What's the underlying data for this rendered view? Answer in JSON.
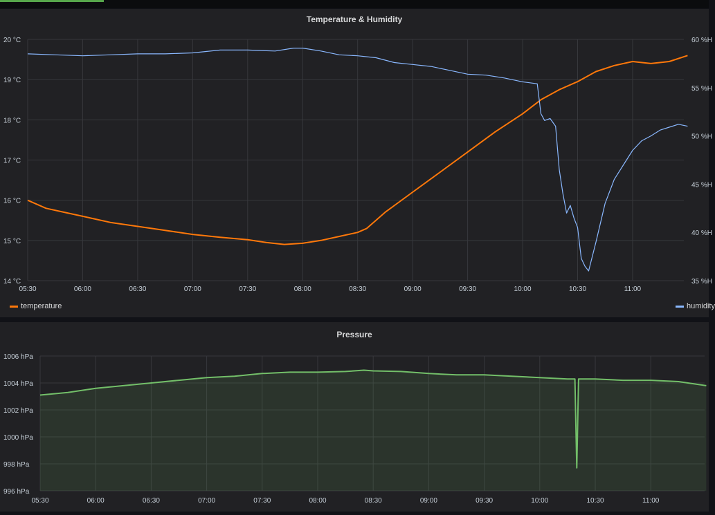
{
  "chart_data": [
    {
      "type": "line",
      "title": "Temperature & Humidity",
      "x_ticks": [
        "05:30",
        "06:00",
        "06:30",
        "07:00",
        "07:30",
        "08:00",
        "08:30",
        "09:00",
        "09:30",
        "10:00",
        "10:30",
        "11:00"
      ],
      "y_left_ticks": [
        "14 °C",
        "15 °C",
        "16 °C",
        "17 °C",
        "18 °C",
        "19 °C",
        "20 °C"
      ],
      "y_left_range": [
        14,
        20
      ],
      "y_right_ticks": [
        "35 %H",
        "40 %H",
        "45 %H",
        "50 %H",
        "55 %H",
        "60 %H"
      ],
      "y_right_range": [
        35,
        60
      ],
      "grid": true,
      "legend_placement": "bottom",
      "series": [
        {
          "name": "temperature",
          "axis": "left",
          "color": "#ff780a",
          "x": [
            "05:30",
            "05:40",
            "05:50",
            "06:00",
            "06:15",
            "06:30",
            "06:45",
            "07:00",
            "07:15",
            "07:30",
            "07:40",
            "07:50",
            "08:00",
            "08:10",
            "08:20",
            "08:30",
            "08:35",
            "08:45",
            "09:00",
            "09:15",
            "09:30",
            "09:45",
            "10:00",
            "10:10",
            "10:20",
            "10:30",
            "10:40",
            "10:50",
            "11:00",
            "11:10",
            "11:20",
            "11:30"
          ],
          "values": [
            16.0,
            15.8,
            15.7,
            15.6,
            15.45,
            15.35,
            15.25,
            15.15,
            15.08,
            15.02,
            14.95,
            14.9,
            14.93,
            15.0,
            15.1,
            15.2,
            15.3,
            15.7,
            16.2,
            16.7,
            17.2,
            17.7,
            18.15,
            18.5,
            18.75,
            18.95,
            19.2,
            19.35,
            19.45,
            19.4,
            19.45,
            19.6
          ]
        },
        {
          "name": "humidity",
          "axis": "right",
          "color": "#8ab8ff",
          "x": [
            "05:30",
            "05:45",
            "06:00",
            "06:15",
            "06:30",
            "06:45",
            "07:00",
            "07:15",
            "07:30",
            "07:45",
            "07:55",
            "08:00",
            "08:10",
            "08:20",
            "08:30",
            "08:40",
            "08:50",
            "09:00",
            "09:10",
            "09:20",
            "09:30",
            "09:40",
            "09:50",
            "10:00",
            "10:08",
            "10:10",
            "10:12",
            "10:15",
            "10:18",
            "10:20",
            "10:22",
            "10:24",
            "10:26",
            "10:28",
            "10:30",
            "10:32",
            "10:34",
            "10:36",
            "10:40",
            "10:45",
            "10:50",
            "10:55",
            "11:00",
            "11:05",
            "11:10",
            "11:15",
            "11:20",
            "11:25",
            "11:30"
          ],
          "values": [
            58.5,
            58.4,
            58.3,
            58.4,
            58.5,
            58.5,
            58.6,
            58.9,
            58.9,
            58.8,
            59.1,
            59.1,
            58.8,
            58.4,
            58.3,
            58.1,
            57.6,
            57.4,
            57.2,
            56.8,
            56.4,
            56.3,
            56.0,
            55.6,
            55.4,
            52.3,
            51.6,
            51.8,
            51.0,
            46.5,
            44.0,
            42.0,
            42.8,
            41.5,
            40.5,
            37.3,
            36.5,
            36.0,
            39.0,
            43.0,
            45.5,
            47.0,
            48.5,
            49.5,
            50.0,
            50.6,
            50.9,
            51.2,
            51.0
          ]
        }
      ]
    },
    {
      "type": "area",
      "title": "Pressure",
      "x_ticks": [
        "05:30",
        "06:00",
        "06:30",
        "07:00",
        "07:30",
        "08:00",
        "08:30",
        "09:00",
        "09:30",
        "10:00",
        "10:30",
        "11:00"
      ],
      "y_ticks": [
        "996 hPa",
        "998 hPa",
        "1000 hPa",
        "1002 hPa",
        "1004 hPa",
        "1006 hPa"
      ],
      "y_range": [
        996,
        1006
      ],
      "grid": true,
      "series": [
        {
          "color": "#73bf69",
          "x": [
            "05:30",
            "05:45",
            "06:00",
            "06:15",
            "06:30",
            "06:45",
            "07:00",
            "07:15",
            "07:30",
            "07:45",
            "08:00",
            "08:15",
            "08:25",
            "08:30",
            "08:45",
            "09:00",
            "09:15",
            "09:30",
            "09:45",
            "10:00",
            "10:15",
            "10:19",
            "10:20",
            "10:21",
            "10:30",
            "10:45",
            "11:00",
            "11:15",
            "11:30"
          ],
          "values": [
            1003.1,
            1003.3,
            1003.6,
            1003.8,
            1004.0,
            1004.2,
            1004.4,
            1004.5,
            1004.7,
            1004.8,
            1004.8,
            1004.85,
            1004.95,
            1004.9,
            1004.85,
            1004.7,
            1004.6,
            1004.6,
            1004.5,
            1004.4,
            1004.3,
            1004.3,
            997.7,
            1004.3,
            1004.3,
            1004.2,
            1004.2,
            1004.1,
            1003.8
          ]
        }
      ]
    }
  ]
}
